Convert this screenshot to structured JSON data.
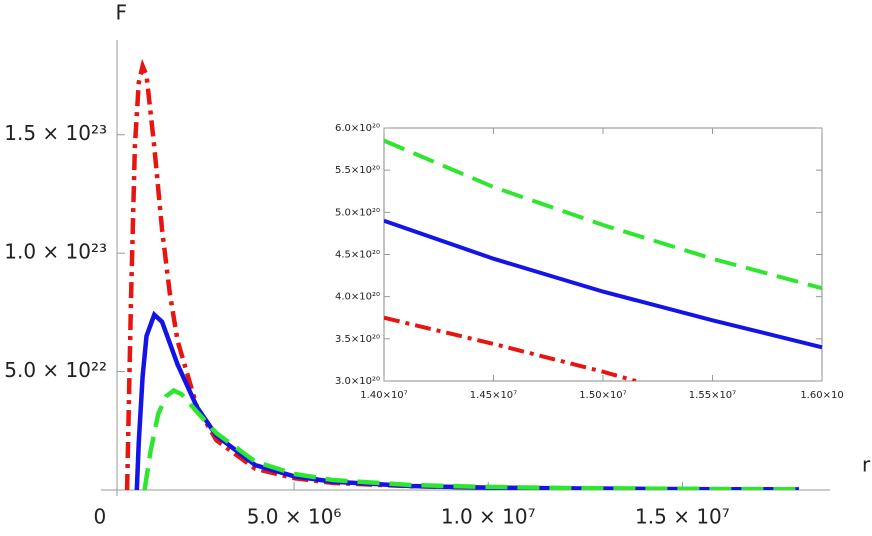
{
  "chart_data": [
    {
      "type": "line",
      "x_label": "r",
      "y_label": "F",
      "xlim": [
        440000,
        18800000
      ],
      "ylim": [
        0,
        1.9e+23
      ],
      "xticks": [
        0,
        {
          "value": 5000000,
          "label": "5.0 × 10⁶"
        },
        {
          "value": 10000000,
          "label": "1.0 × 10⁷"
        },
        {
          "value": 15000000,
          "label": "1.5 × 10⁷"
        }
      ],
      "yticks": [
        {
          "value": 5e+22,
          "label": "5.0 × 10²²"
        },
        {
          "value": 1e+23,
          "label": "1.0 × 10²³"
        },
        {
          "value": 1.5e+23,
          "label": "1.5 × 10²³"
        }
      ],
      "frame": false,
      "series": [
        {
          "color": "#e8140f",
          "dash": "dashdot",
          "x": [
            700000,
            800000,
            900000,
            1000000,
            1100000,
            1200000,
            1400000,
            1600000,
            1800000,
            2000000,
            2500000,
            3000000,
            4000000,
            5000000,
            6000000,
            8000000,
            10000000,
            12000000,
            14000000,
            16000000,
            18000000
          ],
          "values": [
            0,
            8e+22,
            1.45e+23,
            1.72e+23,
            1.79e+23,
            1.75e+23,
            1.45e+23,
            1.1e+23,
            8.3e+22,
            6.3e+22,
            3.5e+22,
            2.1e+22,
            9e+21,
            5e+21,
            3e+21,
            1.6e+21,
            1e+21,
            6.5e+20,
            3.75e+20,
            2.5e+20,
            1.8e+20
          ]
        },
        {
          "color": "#1414e6",
          "dash": "solid",
          "x": [
            950000,
            1000000,
            1100000,
            1200000,
            1400000,
            1600000,
            1800000,
            2000000,
            2500000,
            3000000,
            4000000,
            5000000,
            6000000,
            8000000,
            10000000,
            12000000,
            14000000,
            16000000,
            18000000
          ],
          "values": [
            0,
            2e+22,
            4.8e+22,
            6.5e+22,
            7.4e+22,
            7.1e+22,
            6.2e+22,
            5.3e+22,
            3.5e+22,
            2.3e+22,
            1.05e+22,
            5.8e+21,
            3.5e+21,
            1.7e+21,
            1e+21,
            7e+20,
            4.9e+20,
            3.4e+20,
            2.5e+20
          ]
        },
        {
          "color": "#2ee62e",
          "dash": "dashed",
          "x": [
            1150000,
            1300000,
            1500000,
            1700000,
            1900000,
            2100000,
            2500000,
            3000000,
            4000000,
            5000000,
            6000000,
            8000000,
            10000000,
            12000000,
            14000000,
            16000000,
            18000000
          ],
          "values": [
            0,
            1.6e+22,
            3.2e+22,
            3.95e+22,
            4.2e+22,
            4.05e+22,
            3.3e+22,
            2.4e+22,
            1.2e+22,
            6.8e+21,
            4.2e+21,
            2.1e+21,
            1.3e+21,
            8.5e+20,
            5.85e+20,
            4.1e+20,
            3e+20
          ]
        }
      ]
    },
    {
      "type": "line",
      "xlim": [
        14000000,
        16000000
      ],
      "ylim": [
        3e+20,
        6e+20
      ],
      "xticks": [
        {
          "value": 14000000,
          "label": "1.40×10⁷"
        },
        {
          "value": 14500000,
          "label": "1.45×10⁷"
        },
        {
          "value": 15000000,
          "label": "1.50×10⁷"
        },
        {
          "value": 15500000,
          "label": "1.55×10⁷"
        },
        {
          "value": 16000000,
          "label": "1.60×10"
        }
      ],
      "yticks": [
        {
          "value": 3e+20,
          "label": "3.0×10²⁰"
        },
        {
          "value": 3.5e+20,
          "label": "3.5×10²⁰"
        },
        {
          "value": 4e+20,
          "label": "4.0×10²⁰"
        },
        {
          "value": 4.5e+20,
          "label": "4.5×10²⁰"
        },
        {
          "value": 5e+20,
          "label": "5.0×10²⁰"
        },
        {
          "value": 5.5e+20,
          "label": "5.5×10²⁰"
        },
        {
          "value": 6e+20,
          "label": "6.0×10²⁰"
        }
      ],
      "frame": true,
      "series": [
        {
          "color": "#e8140f",
          "dash": "dashdot",
          "x": [
            14000000,
            14500000,
            15000000,
            15150000
          ],
          "values": [
            3.75e+20,
            3.44e+20,
            3.11e+20,
            3e+20
          ]
        },
        {
          "color": "#1414e6",
          "dash": "solid",
          "x": [
            14000000,
            14500000,
            15000000,
            15500000,
            16000000
          ],
          "values": [
            4.9e+20,
            4.45e+20,
            4.06e+20,
            3.72e+20,
            3.4e+20
          ]
        },
        {
          "color": "#2ee62e",
          "dash": "dashed",
          "x": [
            14000000,
            14500000,
            15000000,
            15500000,
            16000000
          ],
          "values": [
            5.85e+20,
            5.3e+20,
            4.85e+20,
            4.45e+20,
            4.1e+20
          ]
        }
      ]
    }
  ]
}
